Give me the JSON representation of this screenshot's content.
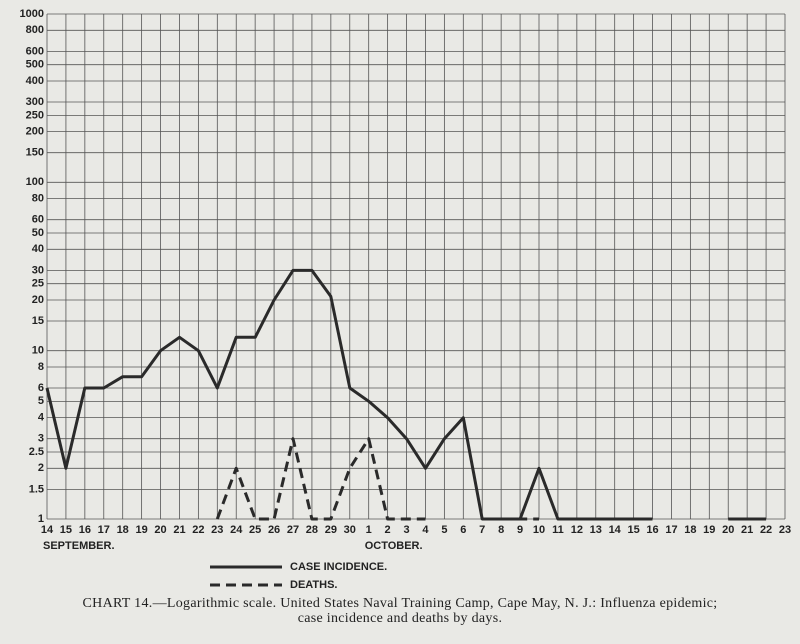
{
  "chart_data": {
    "type": "line",
    "log_scale": true,
    "grid": true,
    "categories": [
      "14",
      "15",
      "16",
      "17",
      "18",
      "19",
      "20",
      "21",
      "22",
      "23",
      "24",
      "25",
      "26",
      "27",
      "28",
      "29",
      "30",
      "1",
      "2",
      "3",
      "4",
      "5",
      "6",
      "7",
      "8",
      "9",
      "10",
      "11",
      "12",
      "13",
      "14",
      "15",
      "16",
      "17",
      "18",
      "19",
      "20",
      "21",
      "22",
      "23"
    ],
    "month_labels": [
      "SEPTEMBER.",
      "OCTOBER."
    ],
    "series": [
      {
        "name": "CASE INCIDENCE.",
        "color": "#2a2a2a",
        "dash": false,
        "values": [
          6,
          2,
          6,
          6,
          7,
          7,
          10,
          12,
          10,
          6,
          12,
          12,
          20,
          30,
          30,
          21,
          6,
          5,
          4,
          3,
          2,
          3,
          4,
          1,
          1,
          1,
          2,
          1,
          1,
          1,
          1,
          1,
          1,
          null,
          null,
          null,
          1,
          1,
          1,
          null
        ]
      },
      {
        "name": "DEATHS.",
        "color": "#2a2a2a",
        "dash": true,
        "values": [
          null,
          null,
          null,
          null,
          null,
          null,
          null,
          null,
          null,
          1,
          2,
          1,
          1,
          3,
          1,
          1,
          2,
          3,
          1,
          1,
          1,
          null,
          null,
          null,
          1,
          1,
          1,
          null,
          null,
          null,
          null,
          null,
          null,
          null,
          null,
          null,
          null,
          null,
          null,
          null
        ]
      }
    ],
    "ylim": [
      1,
      1000
    ],
    "yticks": [
      1,
      1.5,
      2,
      2.5,
      3,
      4,
      5,
      6,
      8,
      10,
      15,
      20,
      25,
      30,
      40,
      50,
      60,
      80,
      100,
      150,
      200,
      250,
      300,
      400,
      500,
      600,
      800,
      1000
    ],
    "caption": "CHART 14.—Logarithmic scale. United States Naval Training Camp, Cape May, N. J.: Influenza epidemic; case incidence and deaths by days."
  }
}
